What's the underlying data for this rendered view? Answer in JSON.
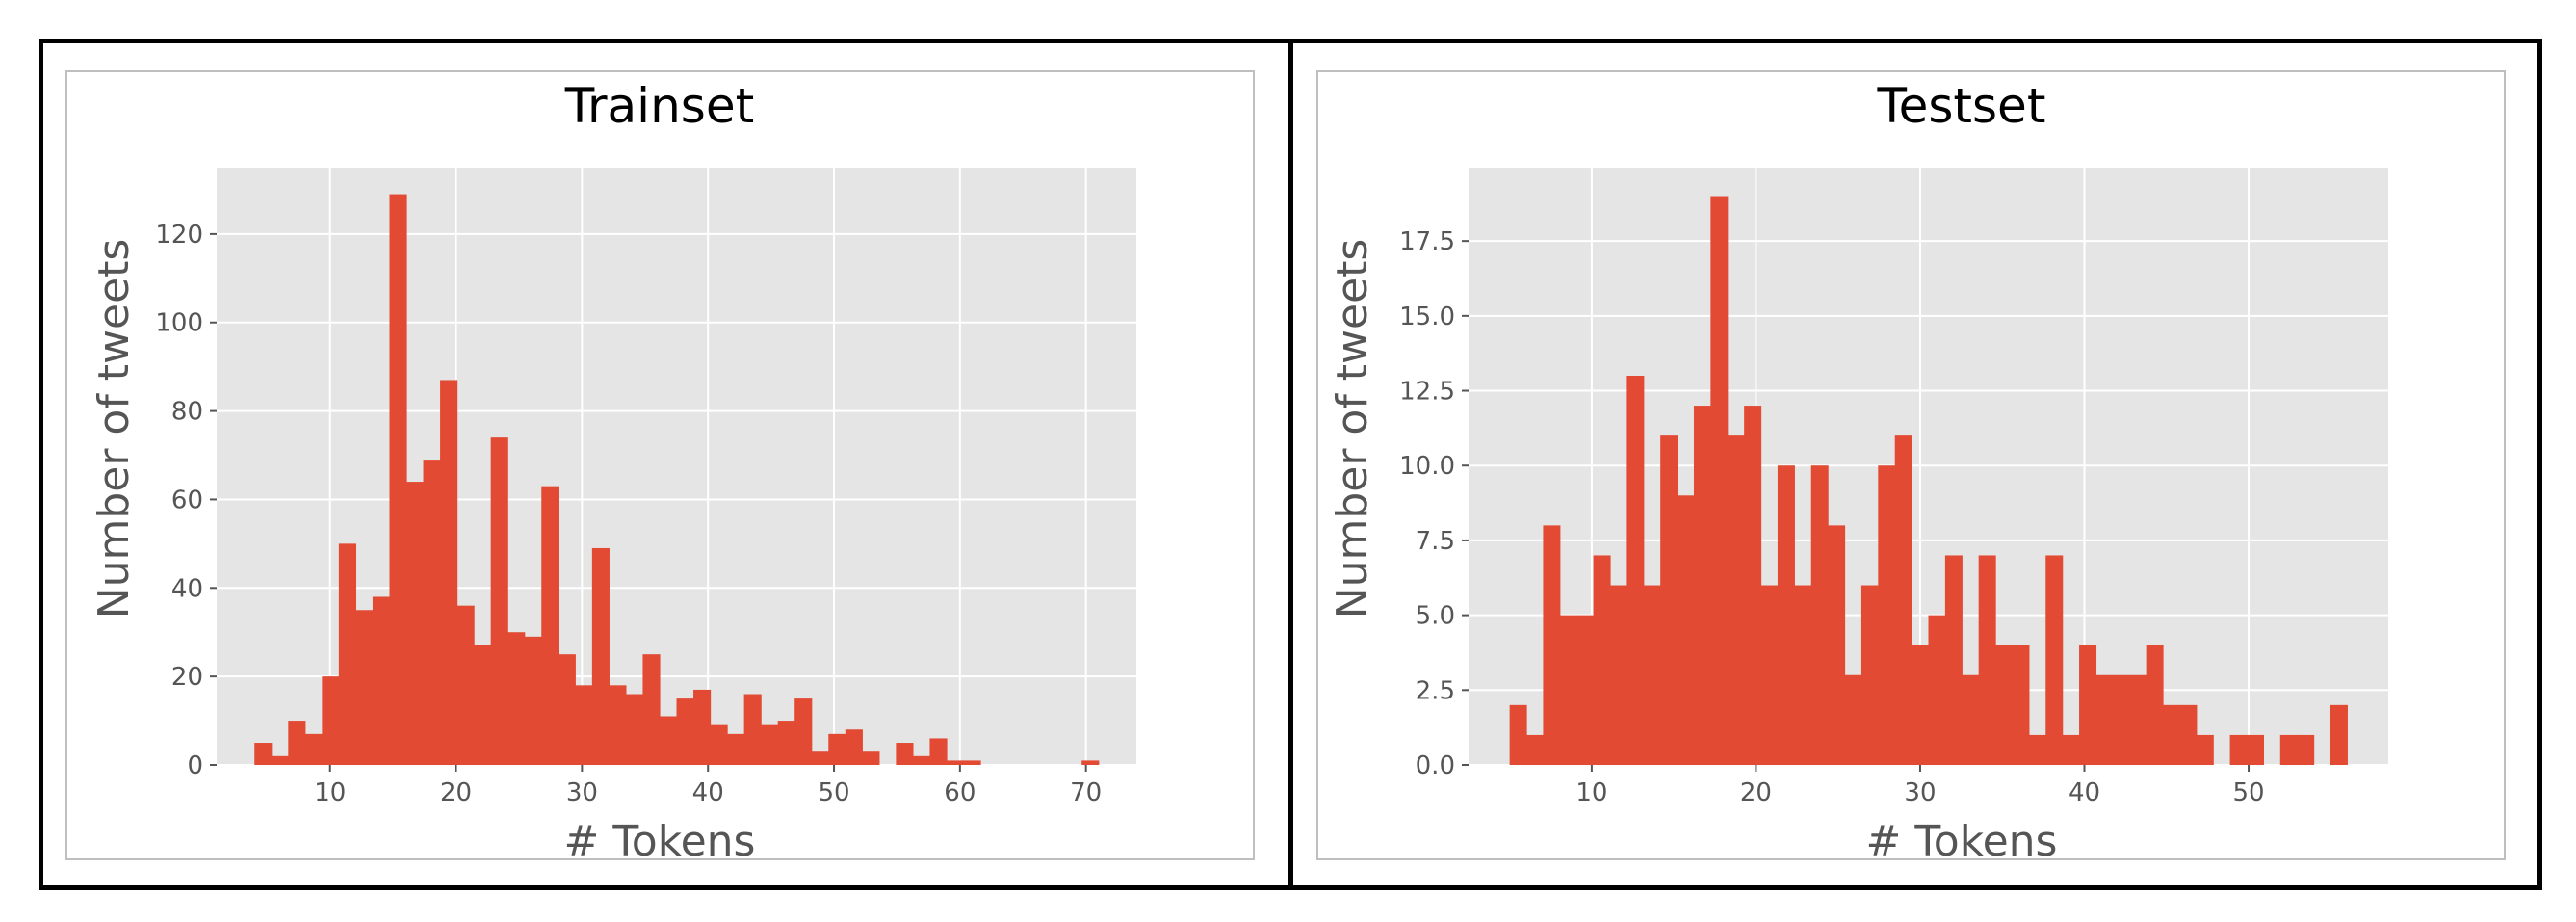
{
  "chart_data": [
    {
      "type": "bar",
      "title": "Trainset",
      "xlabel": "# Tokens",
      "ylabel": "Number of tweets",
      "xlim": [
        1,
        74
      ],
      "ylim": [
        0,
        135
      ],
      "xticks": [
        10,
        20,
        30,
        40,
        50,
        60,
        70
      ],
      "yticks": [
        0,
        20,
        40,
        60,
        80,
        100,
        120
      ],
      "ytick_labels": [
        "0",
        "20",
        "40",
        "60",
        "80",
        "100",
        "120"
      ],
      "bin_edges": [
        4,
        5.34,
        6.68,
        8.02,
        9.36,
        10.7,
        12.04,
        13.38,
        14.72,
        16.06,
        17.4,
        18.74,
        20.08,
        21.42,
        22.76,
        24.1,
        25.44,
        26.78,
        28.12,
        29.46,
        30.8,
        32.14,
        33.48,
        34.82,
        36.16,
        37.5,
        38.84,
        40.18,
        41.52,
        42.86,
        44.2,
        45.54,
        46.88,
        48.22,
        49.56,
        50.9,
        52.24,
        53.58,
        54.92,
        56.26,
        57.6,
        58.94,
        60.28,
        61.62,
        62.96,
        64.3,
        65.64,
        66.98,
        68.32,
        69.66,
        71
      ],
      "values": [
        5,
        2,
        10,
        7,
        20,
        50,
        35,
        38,
        129,
        64,
        69,
        87,
        36,
        27,
        74,
        30,
        29,
        63,
        25,
        18,
        49,
        18,
        16,
        25,
        11,
        15,
        17,
        9,
        7,
        16,
        9,
        10,
        15,
        3,
        7,
        8,
        3,
        0,
        5,
        2,
        6,
        1,
        1,
        0,
        0,
        0,
        0,
        0,
        0,
        1
      ],
      "grid": true,
      "legend": "none",
      "colors": {
        "bar": "#e24a33",
        "panel": "#e5e5e5",
        "grid": "#ffffff"
      }
    },
    {
      "type": "bar",
      "title": "Testset",
      "xlabel": "# Tokens",
      "ylabel": "Number of tweets",
      "xlim": [
        2.5,
        58.5
      ],
      "ylim": [
        0,
        19.95
      ],
      "xticks": [
        10,
        20,
        30,
        40,
        50
      ],
      "yticks": [
        0,
        2.5,
        5,
        7.5,
        10,
        12.5,
        15,
        17.5
      ],
      "ytick_labels": [
        "0.0",
        "2.5",
        "5.0",
        "7.5",
        "10.0",
        "12.5",
        "15.0",
        "17.5"
      ],
      "bin_edges": [
        5,
        6.02,
        7.04,
        8.06,
        9.08,
        10.1,
        11.12,
        12.14,
        13.16,
        14.18,
        15.2,
        16.22,
        17.24,
        18.26,
        19.28,
        20.3,
        21.32,
        22.34,
        23.36,
        24.38,
        25.4,
        26.42,
        27.44,
        28.46,
        29.48,
        30.5,
        31.52,
        32.54,
        33.56,
        34.58,
        35.6,
        36.62,
        37.64,
        38.66,
        39.68,
        40.7,
        41.72,
        42.74,
        43.76,
        44.78,
        45.8,
        46.82,
        47.84,
        48.86,
        49.88,
        50.9,
        51.92,
        52.94,
        53.96,
        54.98,
        56
      ],
      "values": [
        2,
        1,
        8,
        5,
        5,
        7,
        6,
        13,
        6,
        11,
        9,
        12,
        19,
        11,
        12,
        6,
        10,
        6,
        10,
        8,
        3,
        6,
        10,
        11,
        4,
        5,
        7,
        3,
        7,
        4,
        4,
        1,
        7,
        1,
        4,
        3,
        3,
        3,
        4,
        2,
        2,
        1,
        0,
        1,
        1,
        0,
        1,
        1,
        0,
        2
      ],
      "grid": true,
      "legend": "none",
      "colors": {
        "bar": "#e24a33",
        "panel": "#e5e5e5",
        "grid": "#ffffff"
      }
    }
  ]
}
